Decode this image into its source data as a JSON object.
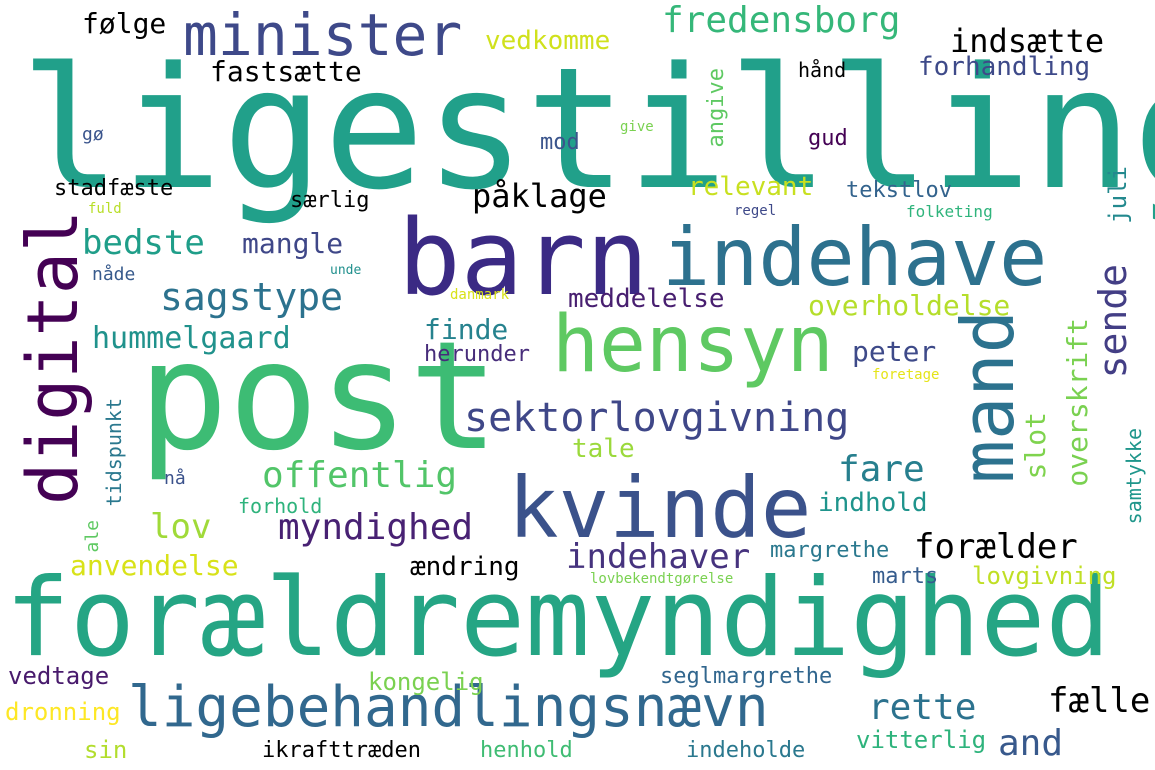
{
  "wordcloud": {
    "words": [
      {
        "id": "ligestilling",
        "text": "ligestilling",
        "color": "#21a08a"
      },
      {
        "id": "foraeldremyndighed",
        "text": "forældremyndighed",
        "color": "#25a584"
      },
      {
        "id": "post",
        "text": "post",
        "color": "#3dbc74"
      },
      {
        "id": "barn",
        "text": "barn",
        "color": "#3b2a84"
      },
      {
        "id": "indehave",
        "text": "indehave",
        "color": "#2d718e"
      },
      {
        "id": "hensyn",
        "text": "hensyn",
        "color": "#5ec962"
      },
      {
        "id": "kvinde",
        "text": "kvinde",
        "color": "#3b528b"
      },
      {
        "id": "digital",
        "text": "digital",
        "color": "#440154"
      },
      {
        "id": "mand",
        "text": "mand",
        "color": "#2c728e"
      },
      {
        "id": "minister",
        "text": "minister",
        "color": "#3e4989"
      },
      {
        "id": "ligebehandlingsnaevn",
        "text": "ligebehandlingsnævn",
        "color": "#31688e"
      },
      {
        "id": "sektorlovgivning",
        "text": "sektorlovgivning",
        "color": "#3f4788"
      },
      {
        "id": "fredensborg",
        "text": "fredensborg",
        "color": "#35b779"
      },
      {
        "id": "sagstype",
        "text": "sagstype",
        "color": "#2c728e"
      },
      {
        "id": "sende",
        "text": "sende",
        "color": "#433e85"
      },
      {
        "id": "offentlig",
        "text": "offentlig",
        "color": "#52c569"
      },
      {
        "id": "myndighed",
        "text": "myndighed",
        "color": "#482173"
      },
      {
        "id": "bedste",
        "text": "bedste",
        "color": "#1f9e89"
      },
      {
        "id": "indsaette",
        "text": "indsætte",
        "color": "#34618d"
      },
      {
        "id": "fare",
        "text": "fare",
        "color": "#277f8e"
      },
      {
        "id": "and",
        "text": "and",
        "color": "#38598c"
      },
      {
        "id": "rette",
        "text": "rette",
        "color": "#2c728e"
      },
      {
        "id": "indehaver",
        "text": "indehaver",
        "color": "#46337e"
      },
      {
        "id": "foraelder",
        "text": "forælder",
        "color": "#404387"
      },
      {
        "id": "lov",
        "text": "lov",
        "color": "#a0da39"
      },
      {
        "id": "faelle",
        "text": "fælle",
        "color": "#46327e"
      },
      {
        "id": "paaklage",
        "text": "påklage",
        "color": "#482677"
      },
      {
        "id": "overholdelse",
        "text": "overholdelse",
        "color": "#b5de2b"
      },
      {
        "id": "hummelgaard",
        "text": "hummelgaard",
        "color": "#20928c"
      },
      {
        "id": "finde",
        "text": "finde",
        "color": "#26828e"
      },
      {
        "id": "peter",
        "text": "peter",
        "color": "#3e4a89"
      },
      {
        "id": "anvendelse",
        "text": "anvendelse",
        "color": "#d8e219"
      },
      {
        "id": "fastsaette",
        "text": "fastsætte",
        "color": "#fde725"
      },
      {
        "id": "vedkomme",
        "text": "vedkomme",
        "color": "#d0e11c"
      },
      {
        "id": "foelge",
        "text": "følge",
        "color": "#3b528b"
      },
      {
        "id": "mangle",
        "text": "mangle",
        "color": "#3f4788"
      },
      {
        "id": "meddelelse",
        "text": "meddelelse",
        "color": "#481f70"
      },
      {
        "id": "relevant",
        "text": "relevant",
        "color": "#c8e020"
      },
      {
        "id": "forhandling",
        "text": "forhandling",
        "color": "#3e4a89"
      },
      {
        "id": "slot",
        "text": "slot",
        "color": "#7fd34e"
      },
      {
        "id": "overskrift",
        "text": "overskrift",
        "color": "#7ad151"
      },
      {
        "id": "aendring",
        "text": "ændring",
        "color": "#27ad81"
      },
      {
        "id": "lovgivning",
        "text": "lovgivning",
        "color": "#c0df25"
      },
      {
        "id": "indhold",
        "text": "indhold",
        "color": "#1f948c"
      },
      {
        "id": "tale",
        "text": "tale",
        "color": "#9bd93c"
      },
      {
        "id": "margrethe",
        "text": "margrethe",
        "color": "#2a788e"
      },
      {
        "id": "seglmargrethe",
        "text": "seglmargrethe",
        "color": "#31668e"
      },
      {
        "id": "kongelig",
        "text": "kongelig",
        "color": "#7ad151"
      },
      {
        "id": "vedtage",
        "text": "vedtage",
        "color": "#481a6c"
      },
      {
        "id": "dronning",
        "text": "dronning",
        "color": "#fde725"
      },
      {
        "id": "sin",
        "text": "sin",
        "color": "#b2dd2d"
      },
      {
        "id": "ikrafttraeden",
        "text": "ikrafttræden",
        "color": "#414487"
      },
      {
        "id": "henhold",
        "text": "henhold",
        "color": "#3fbc73"
      },
      {
        "id": "indeholde",
        "text": "indeholde",
        "color": "#2a788e"
      },
      {
        "id": "vitterlig",
        "text": "vitterlig",
        "color": "#2eb37c"
      },
      {
        "id": "marts",
        "text": "marts",
        "color": "#365c8d"
      },
      {
        "id": "herunder",
        "text": "herunder",
        "color": "#472c7a"
      },
      {
        "id": "forhold",
        "text": "forhold",
        "color": "#2eb37c"
      },
      {
        "id": "tekstlov",
        "text": "tekstlov",
        "color": "#33638d"
      },
      {
        "id": "juli",
        "text": "juli",
        "color": "#23898e"
      },
      {
        "id": "saerlig",
        "text": "særlig",
        "color": "#4ac16d"
      },
      {
        "id": "stadfaeste",
        "text": "stadfæste",
        "color": "#86d549"
      },
      {
        "id": "haand",
        "text": "hånd",
        "color": "#65cb5e"
      },
      {
        "id": "mod",
        "text": "mod",
        "color": "#3a548c"
      },
      {
        "id": "gud",
        "text": "gud",
        "color": "#440154"
      },
      {
        "id": "angive",
        "text": "angive",
        "color": "#5ec962"
      },
      {
        "id": "give",
        "text": "give",
        "color": "#7ad151"
      },
      {
        "id": "goe",
        "text": "gø",
        "color": "#3a548c"
      },
      {
        "id": "fuld",
        "text": "fuld",
        "color": "#b8de29"
      },
      {
        "id": "regel",
        "text": "regel",
        "color": "#3e4989"
      },
      {
        "id": "folketing",
        "text": "folketing",
        "color": "#2fb47c"
      },
      {
        "id": "naade",
        "text": "nåde",
        "color": "#375a8c"
      },
      {
        "id": "unde",
        "text": "unde",
        "color": "#21908d"
      },
      {
        "id": "danmark",
        "text": "danmark",
        "color": "#d8e219"
      },
      {
        "id": "foretage",
        "text": "foretage",
        "color": "#e5e419"
      },
      {
        "id": "tidspunkt",
        "text": "tidspunkt",
        "color": "#2a788e"
      },
      {
        "id": "samtykke",
        "text": "samtykke",
        "color": "#1f968b"
      },
      {
        "id": "naa",
        "text": "nå",
        "color": "#3b528b"
      },
      {
        "id": "ale",
        "text": "ale",
        "color": "#5ec962"
      },
      {
        "id": "lovbekendtgoerelse",
        "text": "lovbekendtgørelse",
        "color": "#7ad151"
      }
    ]
  }
}
